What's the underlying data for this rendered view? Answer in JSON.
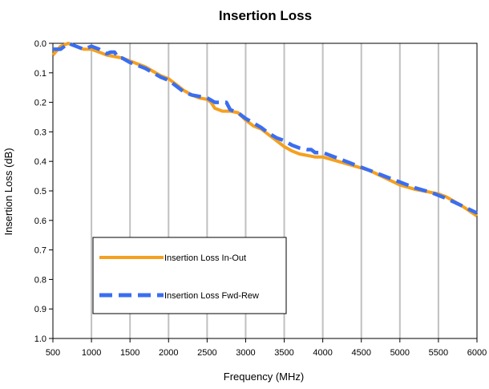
{
  "chart_data": {
    "type": "line",
    "title": "Insertion Loss",
    "xlabel": "Frequency (MHz)",
    "ylabel": "Insertion Loss (dB)",
    "xlim": [
      500,
      6000
    ],
    "ylim": [
      0.0,
      1.0
    ],
    "y_inverted": true,
    "x_ticks": [
      "500",
      "1000",
      "1500",
      "2000",
      "2500",
      "3000",
      "3500",
      "4000",
      "4500",
      "5000",
      "5500",
      "6000"
    ],
    "y_ticks": [
      "0.0",
      "0.1",
      "0.2",
      "0.3",
      "0.4",
      "0.5",
      "0.6",
      "0.7",
      "0.8",
      "0.9",
      "1.0"
    ],
    "grid": "vertical",
    "legend": {
      "placement": "lower-left"
    },
    "series": [
      {
        "name": "Insertion Loss In-Out",
        "color": "#f5a020",
        "style": "solid",
        "x": [
          500,
          600,
          700,
          800,
          900,
          1000,
          1100,
          1200,
          1300,
          1400,
          1500,
          1600,
          1700,
          1800,
          1900,
          2000,
          2100,
          2200,
          2300,
          2400,
          2500,
          2550,
          2600,
          2700,
          2800,
          2900,
          3000,
          3100,
          3200,
          3300,
          3400,
          3500,
          3600,
          3700,
          3800,
          3900,
          4000,
          4200,
          4400,
          4600,
          4800,
          5000,
          5200,
          5400,
          5500,
          5600,
          5800,
          6000
        ],
        "y": [
          0.04,
          0.01,
          0.0,
          0.01,
          0.02,
          0.02,
          0.03,
          0.04,
          0.045,
          0.05,
          0.06,
          0.07,
          0.08,
          0.095,
          0.11,
          0.12,
          0.14,
          0.16,
          0.175,
          0.185,
          0.19,
          0.2,
          0.22,
          0.23,
          0.23,
          0.235,
          0.26,
          0.28,
          0.29,
          0.31,
          0.33,
          0.35,
          0.365,
          0.375,
          0.38,
          0.385,
          0.385,
          0.4,
          0.415,
          0.43,
          0.455,
          0.48,
          0.495,
          0.505,
          0.51,
          0.52,
          0.55,
          0.585
        ]
      },
      {
        "name": "Insertion Loss Fwd-Rew",
        "color": "#3a6ef0",
        "style": "dashed",
        "x": [
          500,
          600,
          700,
          800,
          900,
          1000,
          1100,
          1200,
          1250,
          1300,
          1350,
          1400,
          1500,
          1600,
          1700,
          1800,
          1900,
          2000,
          2100,
          2200,
          2300,
          2400,
          2500,
          2600,
          2700,
          2750,
          2800,
          2900,
          3000,
          3100,
          3200,
          3300,
          3400,
          3500,
          3600,
          3700,
          3800,
          3850,
          3900,
          4000,
          4200,
          4400,
          4600,
          4800,
          5000,
          5200,
          5400,
          5500,
          5600,
          5800,
          6000
        ],
        "y": [
          0.02,
          0.02,
          0.0,
          0.01,
          0.02,
          0.01,
          0.02,
          0.035,
          0.03,
          0.03,
          0.05,
          0.05,
          0.065,
          0.075,
          0.085,
          0.1,
          0.115,
          0.125,
          0.145,
          0.165,
          0.175,
          0.18,
          0.185,
          0.2,
          0.2,
          0.2,
          0.225,
          0.235,
          0.255,
          0.27,
          0.285,
          0.305,
          0.32,
          0.33,
          0.345,
          0.355,
          0.36,
          0.36,
          0.37,
          0.37,
          0.39,
          0.41,
          0.43,
          0.45,
          0.47,
          0.49,
          0.505,
          0.515,
          0.525,
          0.55,
          0.575
        ]
      }
    ]
  }
}
